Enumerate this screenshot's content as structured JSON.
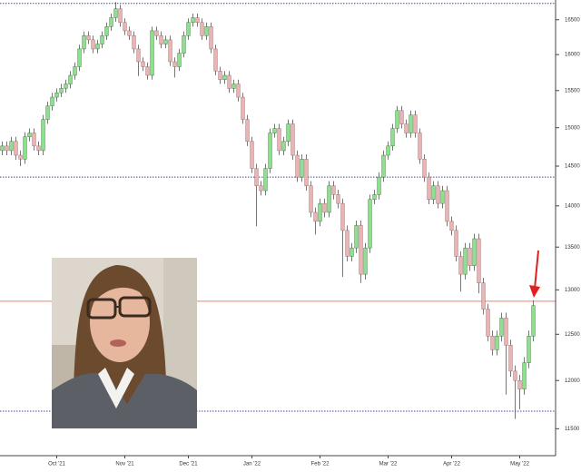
{
  "chart_data": {
    "type": "candlestick",
    "categories": [
      null,
      null,
      null,
      null,
      null,
      null,
      null,
      null,
      null,
      null,
      null,
      null,
      "Oct '21",
      null,
      null,
      null,
      null,
      null,
      null,
      null,
      null,
      null,
      null,
      null,
      null,
      null,
      null,
      "Nov '21",
      null,
      null,
      null,
      null,
      null,
      null,
      null,
      null,
      null,
      null,
      null,
      null,
      null,
      "Dec '21",
      null,
      null,
      null,
      null,
      null,
      null,
      null,
      null,
      null,
      null,
      null,
      null,
      null,
      "Jan '22",
      null,
      null,
      null,
      null,
      null,
      null,
      null,
      null,
      null,
      null,
      null,
      null,
      null,
      null,
      "Feb '22",
      null,
      null,
      null,
      null,
      null,
      null,
      null,
      null,
      null,
      null,
      null,
      null,
      null,
      null,
      "Mar '22",
      null,
      null,
      null,
      null,
      null,
      null,
      null,
      null,
      null,
      null,
      null,
      null,
      null,
      "Apr '22",
      null,
      null,
      null,
      null,
      null,
      null,
      null,
      null,
      null,
      null,
      null,
      null,
      null,
      null,
      "May '22",
      null,
      null,
      null
    ],
    "series": [
      {
        "name": "open",
        "values": [
          14700,
          14760,
          14700,
          14820,
          14640,
          14590,
          14880,
          14930,
          14760,
          14700,
          15110,
          15290,
          15410,
          15470,
          15530,
          15590,
          15710,
          15830,
          16080,
          16270,
          16210,
          16080,
          16150,
          16270,
          16400,
          16530,
          16660,
          16460,
          16340,
          16270,
          16080,
          15900,
          15830,
          15710,
          16340,
          16270,
          16150,
          16210,
          15900,
          15830,
          16020,
          16270,
          16460,
          16530,
          16460,
          16270,
          16400,
          16080,
          15770,
          15650,
          15710,
          15530,
          15590,
          15410,
          15110,
          14820,
          14470,
          14250,
          14190,
          14470,
          14930,
          14990,
          14700,
          14820,
          15050,
          14640,
          14360,
          14590,
          14250,
          13920,
          13810,
          14030,
          13920,
          14250,
          14140,
          14030,
          13700,
          13390,
          13490,
          13760,
          13180,
          13490,
          14080,
          14140,
          14360,
          14640,
          14760,
          14990,
          15230,
          15050,
          14930,
          15170,
          14930,
          14590,
          14360,
          14080,
          14250,
          14030,
          14190,
          13810,
          13700,
          13390,
          13180,
          13490,
          13280,
          13600,
          13080,
          12780,
          12480,
          12330,
          12480,
          12680,
          12380,
          12100,
          12000,
          11910,
          12190,
          12480
        ]
      },
      {
        "name": "high",
        "values": [
          14820,
          14820,
          14880,
          14880,
          14700,
          14940,
          14990,
          14990,
          14820,
          15170,
          15350,
          15470,
          15530,
          15590,
          15650,
          15770,
          15890,
          16140,
          16330,
          16330,
          16270,
          16210,
          16330,
          16460,
          16590,
          16760,
          16720,
          16520,
          16400,
          16330,
          16140,
          15960,
          15890,
          16400,
          16400,
          16330,
          16270,
          16270,
          15960,
          16080,
          16330,
          16520,
          16590,
          16590,
          16520,
          16460,
          16460,
          16140,
          15830,
          15770,
          15770,
          15650,
          15650,
          15470,
          15170,
          14880,
          14530,
          14310,
          14530,
          14990,
          15050,
          15050,
          14880,
          15110,
          15110,
          14700,
          14650,
          14650,
          14310,
          13980,
          14090,
          14090,
          14310,
          14310,
          14200,
          14090,
          13760,
          13550,
          13820,
          13820,
          13550,
          14140,
          14200,
          14420,
          14700,
          14820,
          15050,
          15290,
          15290,
          15110,
          15230,
          15230,
          14990,
          14650,
          14420,
          14310,
          14310,
          14250,
          14250,
          13870,
          13760,
          13450,
          13550,
          13550,
          13660,
          13660,
          13140,
          12840,
          12540,
          12540,
          12740,
          12740,
          12440,
          12160,
          12060,
          12250,
          12540,
          12880
        ]
      },
      {
        "name": "low",
        "values": [
          14640,
          14640,
          14640,
          14580,
          14500,
          14530,
          14820,
          14700,
          14640,
          14640,
          15050,
          15230,
          15350,
          15410,
          15470,
          15530,
          15650,
          15770,
          16020,
          16150,
          16020,
          16020,
          16090,
          16210,
          16340,
          16470,
          16400,
          16280,
          16210,
          16020,
          15700,
          15770,
          15650,
          15650,
          16210,
          16090,
          16090,
          15840,
          15680,
          15770,
          15960,
          16210,
          16400,
          16400,
          16210,
          16210,
          16020,
          15710,
          15590,
          15590,
          15470,
          15470,
          15350,
          15050,
          14760,
          14410,
          13750,
          14130,
          14130,
          14410,
          14870,
          14640,
          14640,
          14760,
          14580,
          14300,
          14300,
          14190,
          13860,
          13650,
          13750,
          13860,
          13860,
          14080,
          13970,
          13150,
          13330,
          13330,
          13430,
          13080,
          13120,
          13430,
          14020,
          14080,
          14300,
          14580,
          14700,
          14930,
          14990,
          14870,
          14870,
          14870,
          14530,
          14300,
          14020,
          14020,
          13970,
          13970,
          13750,
          13640,
          13330,
          12980,
          13120,
          13220,
          13220,
          12960,
          12720,
          12420,
          12270,
          12270,
          12420,
          11850,
          12040,
          11600,
          11700,
          11850,
          12130,
          12420
        ]
      },
      {
        "name": "close",
        "values": [
          14760,
          14700,
          14820,
          14640,
          14590,
          14880,
          14930,
          14760,
          14700,
          15110,
          15290,
          15410,
          15470,
          15530,
          15590,
          15710,
          15830,
          16080,
          16270,
          16210,
          16080,
          16150,
          16270,
          16400,
          16530,
          16660,
          16460,
          16340,
          16270,
          16080,
          15900,
          15830,
          15710,
          16340,
          16270,
          16150,
          16210,
          15900,
          15830,
          16020,
          16270,
          16460,
          16530,
          16460,
          16270,
          16400,
          16080,
          15770,
          15650,
          15710,
          15530,
          15590,
          15410,
          15110,
          14820,
          14470,
          14250,
          14190,
          14470,
          14930,
          14990,
          14700,
          14820,
          15050,
          14640,
          14360,
          14590,
          14250,
          13920,
          13810,
          14030,
          13920,
          14250,
          14140,
          14030,
          13700,
          13390,
          13490,
          13760,
          13180,
          13490,
          14080,
          14140,
          14360,
          14640,
          14760,
          14990,
          15230,
          15050,
          14930,
          15170,
          14930,
          14590,
          14360,
          14080,
          14250,
          14030,
          14190,
          13810,
          13700,
          13390,
          13180,
          13490,
          13280,
          13600,
          13080,
          12780,
          12480,
          12330,
          12480,
          12680,
          12380,
          12100,
          12000,
          11910,
          12190,
          12480,
          12820
        ]
      }
    ],
    "up_color": "#8ee08e",
    "down_color": "#eab4b4",
    "ylim": [
      11230,
      16790
    ],
    "yticks": [
      11500,
      12000,
      12500,
      13000,
      13500,
      14000,
      14500,
      15000,
      15500,
      16000,
      16500
    ],
    "log_scale": true,
    "hlines": [
      {
        "value": 16740,
        "color": "#4444aa",
        "style": "dotted"
      },
      {
        "value": 14360,
        "color": "#4444aa",
        "style": "dotted"
      },
      {
        "value": 11680,
        "color": "#4444aa",
        "style": "dotted"
      },
      {
        "value": 12870,
        "color": "#f08060",
        "style": "solid"
      }
    ]
  }
}
